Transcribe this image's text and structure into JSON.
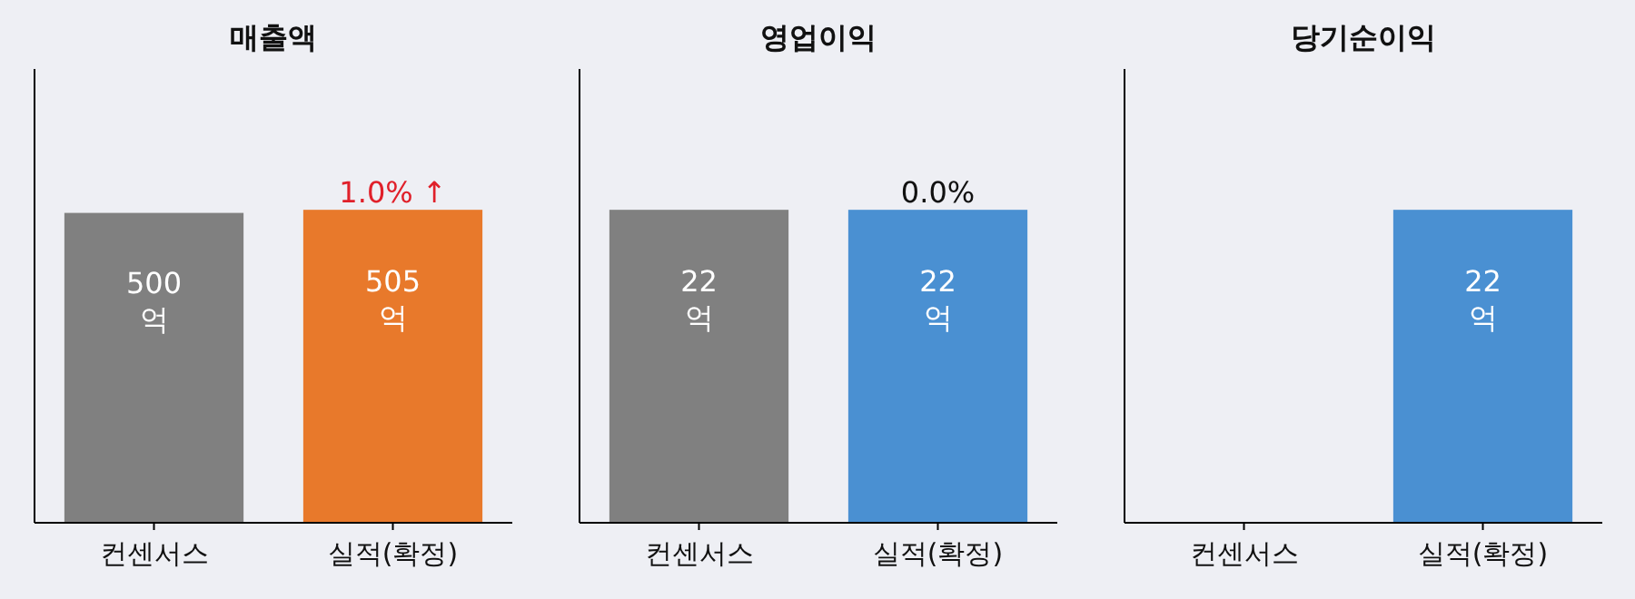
{
  "chart_data": [
    {
      "type": "bar",
      "title": "매출액",
      "categories": [
        "컨센서스",
        "실적(확정)"
      ],
      "values": [
        500,
        505
      ],
      "colors": [
        "#808080",
        "#e8792b"
      ],
      "value_labels": [
        "500\n억",
        "505\n억"
      ],
      "annotations": [
        "1.0% ↑"
      ]
    },
    {
      "type": "bar",
      "title": "영업이익",
      "categories": [
        "컨센서스",
        "실적(확정)"
      ],
      "values": [
        22,
        22
      ],
      "colors": [
        "#808080",
        "#4a90d2"
      ],
      "value_labels": [
        "22\n억",
        "22\n억"
      ],
      "annotations": [
        "0.0%"
      ]
    },
    {
      "type": "bar",
      "title": "당기순이익",
      "categories": [
        "컨센서스",
        "실적(확정)"
      ],
      "values": [
        null,
        22
      ],
      "colors": [
        null,
        "#4a90d2"
      ],
      "value_labels": [
        null,
        "22\n억"
      ]
    }
  ]
}
